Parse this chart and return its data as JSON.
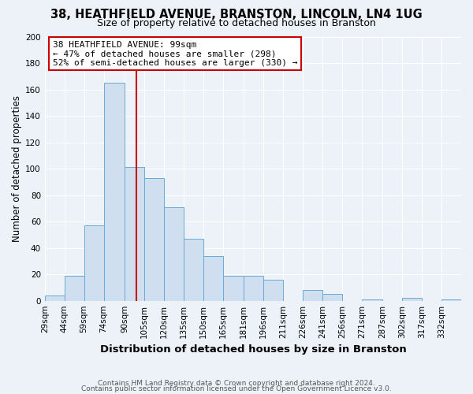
{
  "title": "38, HEATHFIELD AVENUE, BRANSTON, LINCOLN, LN4 1UG",
  "subtitle": "Size of property relative to detached houses in Branston",
  "xlabel": "Distribution of detached houses by size in Branston",
  "ylabel": "Number of detached properties",
  "bin_labels": [
    "29sqm",
    "44sqm",
    "59sqm",
    "74sqm",
    "90sqm",
    "105sqm",
    "120sqm",
    "135sqm",
    "150sqm",
    "165sqm",
    "181sqm",
    "196sqm",
    "211sqm",
    "226sqm",
    "241sqm",
    "256sqm",
    "271sqm",
    "287sqm",
    "302sqm",
    "317sqm",
    "332sqm"
  ],
  "bin_edges": [
    29,
    44,
    59,
    74,
    90,
    105,
    120,
    135,
    150,
    165,
    181,
    196,
    211,
    226,
    241,
    256,
    271,
    287,
    302,
    317,
    332,
    347
  ],
  "bar_heights": [
    4,
    19,
    57,
    165,
    101,
    93,
    71,
    47,
    34,
    19,
    19,
    16,
    0,
    8,
    5,
    0,
    1,
    0,
    2,
    0,
    1
  ],
  "bar_color": "#cfdff0",
  "bar_edgecolor": "#6aaad4",
  "vline_x": 99,
  "vline_color": "#cc0000",
  "annotation_title": "38 HEATHFIELD AVENUE: 99sqm",
  "annotation_line1": "← 47% of detached houses are smaller (298)",
  "annotation_line2": "52% of semi-detached houses are larger (330) →",
  "annotation_box_color": "white",
  "annotation_box_edgecolor": "#cc0000",
  "ylim": [
    0,
    200
  ],
  "yticks": [
    0,
    20,
    40,
    60,
    80,
    100,
    120,
    140,
    160,
    180,
    200
  ],
  "footer1": "Contains HM Land Registry data © Crown copyright and database right 2024.",
  "footer2": "Contains public sector information licensed under the Open Government Licence v3.0.",
  "background_color": "#edf2f9",
  "grid_color": "#ffffff",
  "title_fontsize": 10.5,
  "subtitle_fontsize": 9.0,
  "xlabel_fontsize": 9.5,
  "ylabel_fontsize": 8.5,
  "tick_fontsize": 7.5,
  "annotation_fontsize": 8.0,
  "footer_fontsize": 6.5
}
